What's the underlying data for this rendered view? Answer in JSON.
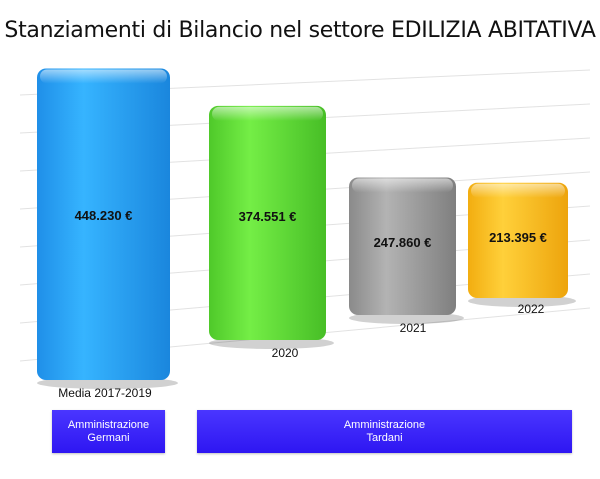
{
  "title": "Stanziamenti di Bilancio nel settore EDILIZIA ABITATIVA",
  "chart_data": {
    "type": "bar",
    "title": "Stanziamenti di Bilancio nel settore EDILIZIA ABITATIVA",
    "categories": [
      "Media 2017-2019",
      "2020",
      "2021",
      "2022"
    ],
    "values": [
      448230,
      374551,
      247860,
      213395
    ],
    "value_labels": [
      "448.230 €",
      "374.551 €",
      "247.860 €",
      "213.395 €"
    ],
    "colors": [
      "#2aa6ff",
      "#62e03a",
      "#9a9a9a",
      "#ffc21e"
    ],
    "xlabel": "",
    "ylabel": "",
    "grid": true,
    "legend": "none"
  },
  "groups": [
    {
      "line1": "Amministrazione",
      "line2": "Germani"
    },
    {
      "line1": "Amministrazione",
      "line2": "Tardani"
    }
  ]
}
